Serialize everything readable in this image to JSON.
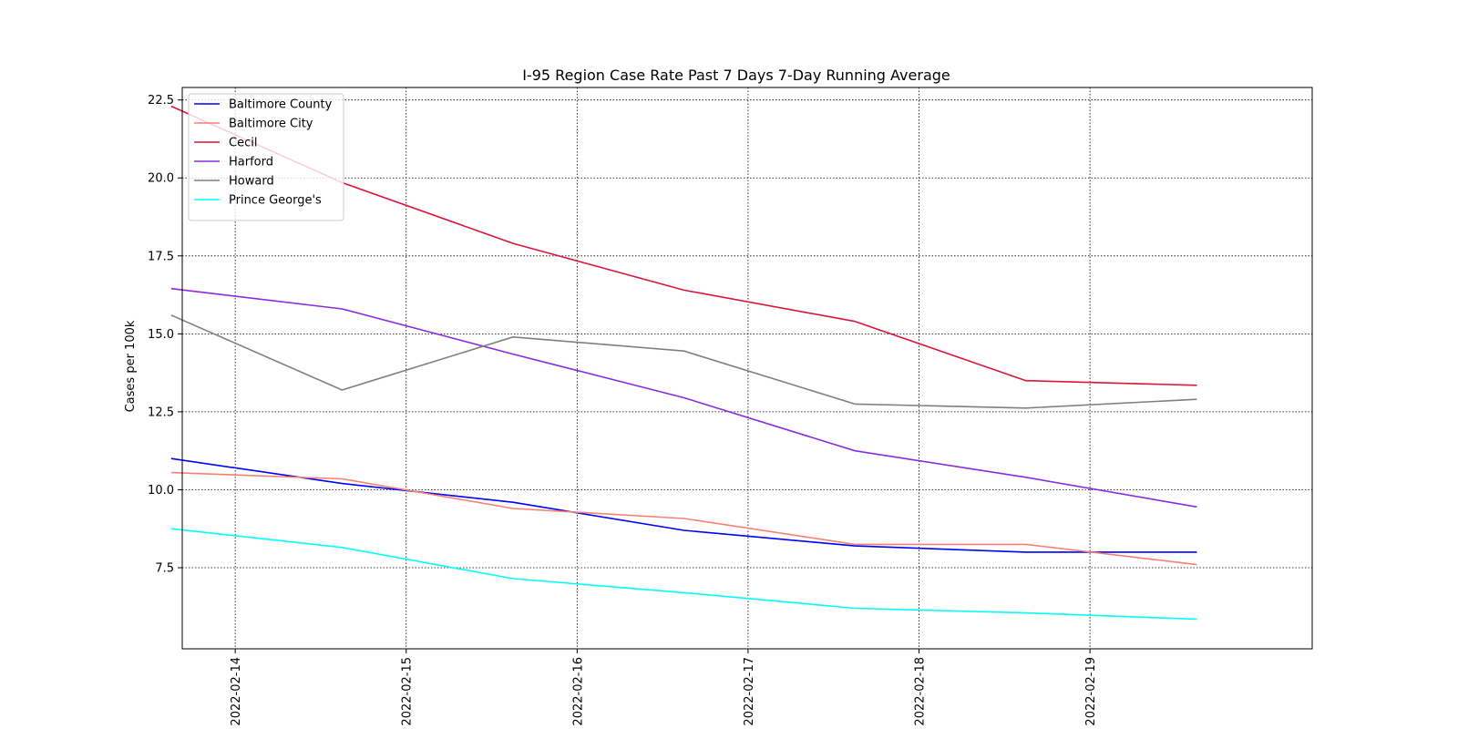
{
  "chart_data": {
    "type": "line",
    "title": "I-95 Region Case Rate  Past 7 Days 7-Day Running Average",
    "xlabel": "",
    "ylabel": "Cases per 100k",
    "x_dates": [
      "2022-02-13 15:00",
      "2022-02-14 15:00",
      "2022-02-15 15:00",
      "2022-02-16 15:00",
      "2022-02-17 15:00",
      "2022-02-18 15:00",
      "2022-02-19 15:00"
    ],
    "x_ticks": [
      "2022-02-14",
      "2022-02-15",
      "2022-02-16",
      "2022-02-17",
      "2022-02-18",
      "2022-02-19"
    ],
    "xlim_days": [
      -0.31,
      6.3
    ],
    "ylim": [
      4.9,
      22.9
    ],
    "y_ticks": [
      7.5,
      10.0,
      12.5,
      15.0,
      17.5,
      20.0,
      22.5
    ],
    "y_tick_labels": [
      "7.5",
      "10.0",
      "12.5",
      "15.0",
      "17.5",
      "20.0",
      "22.5"
    ],
    "grid": true,
    "grid_style": "dotted",
    "legend_position": "top-left",
    "series": [
      {
        "name": "Baltimore County",
        "color": "#0000ff",
        "values": [
          11.0,
          10.2,
          9.6,
          8.7,
          8.2,
          8.0,
          8.0
        ]
      },
      {
        "name": "Baltimore City",
        "color": "#fa8072",
        "values": [
          10.55,
          10.35,
          9.4,
          9.08,
          8.25,
          8.25,
          7.6
        ]
      },
      {
        "name": "Cecil",
        "color": "#dc143c",
        "values": [
          22.3,
          19.85,
          17.9,
          16.4,
          15.4,
          13.5,
          13.35
        ]
      },
      {
        "name": "Harford",
        "color": "#8a2be2",
        "values": [
          16.45,
          15.8,
          14.35,
          12.95,
          11.25,
          10.4,
          9.45
        ]
      },
      {
        "name": "Howard",
        "color": "#808080",
        "values": [
          15.6,
          13.2,
          14.9,
          14.45,
          12.75,
          12.62,
          12.9
        ]
      },
      {
        "name": "Prince George's",
        "color": "#00ffff",
        "values": [
          8.75,
          8.15,
          7.15,
          6.7,
          6.2,
          6.05,
          5.85
        ]
      }
    ]
  }
}
